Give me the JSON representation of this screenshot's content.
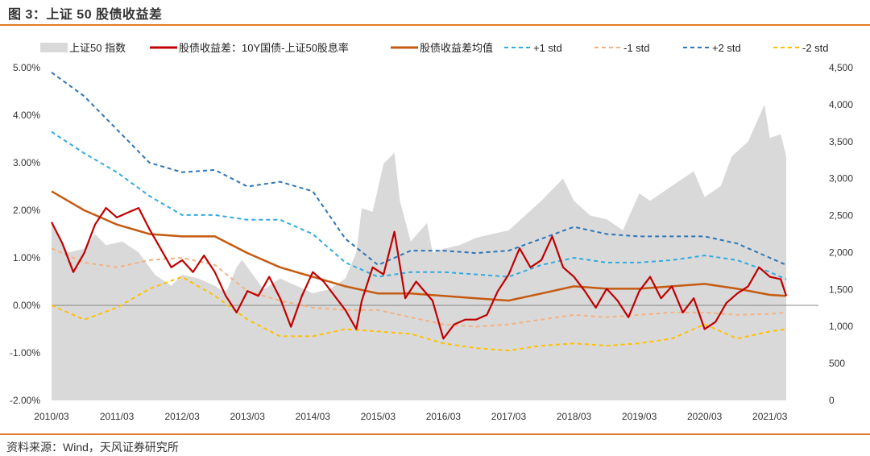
{
  "title": "图 3：上证 50 股债收益差",
  "source": "资料来源：Wind，天风证券研究所",
  "chart_data": {
    "type": "line",
    "title": "图 3：上证 50 股债收益差",
    "legend_position": "top",
    "grid": false,
    "x_axis": {
      "range": [
        "2010-03",
        "2021-06"
      ],
      "tick_labels": [
        "2010/03",
        "2011/03",
        "2012/03",
        "2013/03",
        "2014/03",
        "2015/03",
        "2016/03",
        "2017/03",
        "2018/03",
        "2019/03",
        "2020/03",
        "2021/03"
      ]
    },
    "y_left": {
      "range": [
        -2.0,
        5.0
      ],
      "unit": "%",
      "tick_labels": [
        "5.00%",
        "4.00%",
        "3.00%",
        "2.00%",
        "1.00%",
        "0.00%",
        "-1.00%",
        "-2.00%"
      ],
      "ticks": [
        5,
        4,
        3,
        2,
        1,
        0,
        -1,
        -2
      ]
    },
    "y_right": {
      "range": [
        0,
        4500
      ],
      "tick_labels": [
        "4,500",
        "4,000",
        "3,500",
        "3,000",
        "2,500",
        "2,000",
        "1,500",
        "1,000",
        "500",
        "0"
      ],
      "ticks": [
        4500,
        4000,
        3500,
        3000,
        2500,
        2000,
        1500,
        1000,
        500,
        0
      ]
    },
    "colors": {
      "index": "#d9d9d9",
      "spread": "#c00000",
      "mean": "#c55a11",
      "p1": "#33aadd",
      "m1": "#f4b183",
      "p2": "#2e75b6",
      "m2": "#ffc000",
      "axis": "#888888"
    },
    "series": [
      {
        "key": "index",
        "name": "上证50 指数",
        "axis": "right",
        "style": "area",
        "points": [
          [
            "2010-03",
            2400
          ],
          [
            "2010-06",
            2000
          ],
          [
            "2010-09",
            2050
          ],
          [
            "2010-11",
            2250
          ],
          [
            "2011-01",
            2100
          ],
          [
            "2011-04",
            2150
          ],
          [
            "2011-07",
            2000
          ],
          [
            "2011-10",
            1700
          ],
          [
            "2012-01",
            1550
          ],
          [
            "2012-03",
            1700
          ],
          [
            "2012-06",
            1650
          ],
          [
            "2012-09",
            1550
          ],
          [
            "2012-11",
            1450
          ],
          [
            "2013-01",
            1800
          ],
          [
            "2013-02",
            1900
          ],
          [
            "2013-06",
            1500
          ],
          [
            "2013-09",
            1650
          ],
          [
            "2013-12",
            1550
          ],
          [
            "2014-03",
            1450
          ],
          [
            "2014-06",
            1500
          ],
          [
            "2014-09",
            1650
          ],
          [
            "2014-11",
            2000
          ],
          [
            "2014-12",
            2600
          ],
          [
            "2015-02",
            2550
          ],
          [
            "2015-04",
            3200
          ],
          [
            "2015-06",
            3350
          ],
          [
            "2015-07",
            2700
          ],
          [
            "2015-09",
            2150
          ],
          [
            "2015-12",
            2400
          ],
          [
            "2016-01",
            2000
          ],
          [
            "2016-03",
            2050
          ],
          [
            "2016-06",
            2100
          ],
          [
            "2016-09",
            2200
          ],
          [
            "2016-12",
            2250
          ],
          [
            "2017-03",
            2300
          ],
          [
            "2017-06",
            2500
          ],
          [
            "2017-09",
            2700
          ],
          [
            "2018-01",
            3000
          ],
          [
            "2018-03",
            2700
          ],
          [
            "2018-06",
            2500
          ],
          [
            "2018-09",
            2450
          ],
          [
            "2018-12",
            2300
          ],
          [
            "2019-03",
            2800
          ],
          [
            "2019-05",
            2700
          ],
          [
            "2019-08",
            2850
          ],
          [
            "2019-12",
            3050
          ],
          [
            "2020-01",
            3100
          ],
          [
            "2020-03",
            2750
          ],
          [
            "2020-06",
            2900
          ],
          [
            "2020-08",
            3300
          ],
          [
            "2020-11",
            3500
          ],
          [
            "2021-02",
            4000
          ],
          [
            "2021-03",
            3550
          ],
          [
            "2021-05",
            3600
          ],
          [
            "2021-06",
            3300
          ]
        ]
      },
      {
        "key": "spread",
        "name": "股债收益差：10Y国债-上证50股息率",
        "axis": "left",
        "style": "line",
        "points": [
          [
            "2010-03",
            1.75
          ],
          [
            "2010-05",
            1.3
          ],
          [
            "2010-07",
            0.7
          ],
          [
            "2010-09",
            1.1
          ],
          [
            "2010-11",
            1.7
          ],
          [
            "2011-01",
            2.05
          ],
          [
            "2011-03",
            1.85
          ],
          [
            "2011-05",
            1.95
          ],
          [
            "2011-07",
            2.05
          ],
          [
            "2011-09",
            1.6
          ],
          [
            "2011-11",
            1.2
          ],
          [
            "2012-01",
            0.8
          ],
          [
            "2012-03",
            0.95
          ],
          [
            "2012-05",
            0.7
          ],
          [
            "2012-07",
            1.05
          ],
          [
            "2012-09",
            0.7
          ],
          [
            "2012-11",
            0.2
          ],
          [
            "2013-01",
            -0.15
          ],
          [
            "2013-03",
            0.3
          ],
          [
            "2013-05",
            0.2
          ],
          [
            "2013-07",
            0.6
          ],
          [
            "2013-09",
            0.15
          ],
          [
            "2013-11",
            -0.45
          ],
          [
            "2014-01",
            0.2
          ],
          [
            "2014-03",
            0.7
          ],
          [
            "2014-05",
            0.5
          ],
          [
            "2014-07",
            0.2
          ],
          [
            "2014-09",
            -0.1
          ],
          [
            "2014-11",
            -0.5
          ],
          [
            "2014-12",
            0.1
          ],
          [
            "2015-02",
            0.8
          ],
          [
            "2015-04",
            0.65
          ],
          [
            "2015-06",
            1.55
          ],
          [
            "2015-08",
            0.15
          ],
          [
            "2015-10",
            0.5
          ],
          [
            "2016-01",
            0.1
          ],
          [
            "2016-03",
            -0.7
          ],
          [
            "2016-05",
            -0.4
          ],
          [
            "2016-07",
            -0.3
          ],
          [
            "2016-09",
            -0.3
          ],
          [
            "2016-11",
            -0.2
          ],
          [
            "2017-01",
            0.3
          ],
          [
            "2017-03",
            0.65
          ],
          [
            "2017-05",
            1.2
          ],
          [
            "2017-07",
            0.8
          ],
          [
            "2017-09",
            0.95
          ],
          [
            "2017-11",
            1.45
          ],
          [
            "2018-01",
            0.8
          ],
          [
            "2018-03",
            0.6
          ],
          [
            "2018-05",
            0.3
          ],
          [
            "2018-07",
            -0.05
          ],
          [
            "2018-09",
            0.35
          ],
          [
            "2018-11",
            0.1
          ],
          [
            "2019-01",
            -0.25
          ],
          [
            "2019-03",
            0.3
          ],
          [
            "2019-05",
            0.6
          ],
          [
            "2019-07",
            0.15
          ],
          [
            "2019-09",
            0.4
          ],
          [
            "2019-11",
            -0.15
          ],
          [
            "2020-01",
            0.15
          ],
          [
            "2020-03",
            -0.5
          ],
          [
            "2020-05",
            -0.35
          ],
          [
            "2020-07",
            0.05
          ],
          [
            "2020-09",
            0.25
          ],
          [
            "2020-11",
            0.4
          ],
          [
            "2021-01",
            0.8
          ],
          [
            "2021-03",
            0.6
          ],
          [
            "2021-05",
            0.55
          ],
          [
            "2021-06",
            0.2
          ]
        ]
      },
      {
        "key": "mean",
        "name": "股债收益差均值",
        "axis": "left",
        "style": "line",
        "points": [
          [
            "2010-03",
            2.4
          ],
          [
            "2010-09",
            2.0
          ],
          [
            "2011-03",
            1.7
          ],
          [
            "2011-09",
            1.5
          ],
          [
            "2012-03",
            1.45
          ],
          [
            "2012-09",
            1.45
          ],
          [
            "2013-03",
            1.1
          ],
          [
            "2013-09",
            0.8
          ],
          [
            "2014-03",
            0.6
          ],
          [
            "2014-09",
            0.4
          ],
          [
            "2015-03",
            0.25
          ],
          [
            "2015-09",
            0.25
          ],
          [
            "2016-03",
            0.2
          ],
          [
            "2016-09",
            0.15
          ],
          [
            "2017-03",
            0.1
          ],
          [
            "2017-09",
            0.25
          ],
          [
            "2018-03",
            0.4
          ],
          [
            "2018-09",
            0.35
          ],
          [
            "2019-03",
            0.35
          ],
          [
            "2019-09",
            0.4
          ],
          [
            "2020-03",
            0.45
          ],
          [
            "2020-09",
            0.35
          ],
          [
            "2021-03",
            0.22
          ],
          [
            "2021-06",
            0.2
          ]
        ]
      },
      {
        "key": "p1",
        "name": "+1 std",
        "axis": "left",
        "style": "dash",
        "points": [
          [
            "2010-03",
            3.65
          ],
          [
            "2010-09",
            3.2
          ],
          [
            "2011-03",
            2.8
          ],
          [
            "2011-09",
            2.3
          ],
          [
            "2012-03",
            1.9
          ],
          [
            "2012-09",
            1.9
          ],
          [
            "2013-03",
            1.8
          ],
          [
            "2013-09",
            1.8
          ],
          [
            "2014-03",
            1.5
          ],
          [
            "2014-09",
            0.9
          ],
          [
            "2015-03",
            0.6
          ],
          [
            "2015-09",
            0.7
          ],
          [
            "2016-03",
            0.7
          ],
          [
            "2016-09",
            0.65
          ],
          [
            "2017-03",
            0.6
          ],
          [
            "2017-09",
            0.85
          ],
          [
            "2018-03",
            1.0
          ],
          [
            "2018-09",
            0.9
          ],
          [
            "2019-03",
            0.9
          ],
          [
            "2019-09",
            0.95
          ],
          [
            "2020-03",
            1.05
          ],
          [
            "2020-09",
            0.95
          ],
          [
            "2021-03",
            0.7
          ],
          [
            "2021-06",
            0.55
          ]
        ]
      },
      {
        "key": "m1",
        "name": "-1 std",
        "axis": "left",
        "style": "dash",
        "points": [
          [
            "2010-03",
            1.2
          ],
          [
            "2010-09",
            0.9
          ],
          [
            "2011-03",
            0.8
          ],
          [
            "2011-09",
            0.95
          ],
          [
            "2012-03",
            1.0
          ],
          [
            "2012-09",
            0.85
          ],
          [
            "2013-03",
            0.3
          ],
          [
            "2013-09",
            0.1
          ],
          [
            "2014-03",
            -0.05
          ],
          [
            "2014-09",
            -0.1
          ],
          [
            "2015-03",
            -0.1
          ],
          [
            "2015-09",
            -0.25
          ],
          [
            "2016-03",
            -0.4
          ],
          [
            "2016-09",
            -0.45
          ],
          [
            "2017-03",
            -0.4
          ],
          [
            "2017-09",
            -0.3
          ],
          [
            "2018-03",
            -0.2
          ],
          [
            "2018-09",
            -0.25
          ],
          [
            "2019-03",
            -0.2
          ],
          [
            "2019-09",
            -0.15
          ],
          [
            "2020-03",
            -0.15
          ],
          [
            "2020-09",
            -0.2
          ],
          [
            "2021-03",
            -0.18
          ],
          [
            "2021-06",
            -0.15
          ]
        ]
      },
      {
        "key": "p2",
        "name": "+2 std",
        "axis": "left",
        "style": "dash",
        "points": [
          [
            "2010-03",
            4.9
          ],
          [
            "2010-09",
            4.4
          ],
          [
            "2011-03",
            3.7
          ],
          [
            "2011-09",
            3.0
          ],
          [
            "2012-03",
            2.8
          ],
          [
            "2012-09",
            2.85
          ],
          [
            "2013-03",
            2.5
          ],
          [
            "2013-09",
            2.6
          ],
          [
            "2014-03",
            2.4
          ],
          [
            "2014-09",
            1.4
          ],
          [
            "2015-03",
            0.85
          ],
          [
            "2015-09",
            1.15
          ],
          [
            "2016-03",
            1.15
          ],
          [
            "2016-09",
            1.1
          ],
          [
            "2017-03",
            1.15
          ],
          [
            "2017-09",
            1.4
          ],
          [
            "2018-03",
            1.65
          ],
          [
            "2018-09",
            1.5
          ],
          [
            "2019-03",
            1.45
          ],
          [
            "2019-09",
            1.45
          ],
          [
            "2020-03",
            1.45
          ],
          [
            "2020-09",
            1.3
          ],
          [
            "2021-03",
            1.0
          ],
          [
            "2021-06",
            0.85
          ]
        ]
      },
      {
        "key": "m2",
        "name": "-2 std",
        "axis": "left",
        "style": "dash",
        "points": [
          [
            "2010-03",
            0.0
          ],
          [
            "2010-09",
            -0.3
          ],
          [
            "2011-03",
            -0.05
          ],
          [
            "2011-09",
            0.35
          ],
          [
            "2012-03",
            0.6
          ],
          [
            "2012-09",
            0.2
          ],
          [
            "2013-03",
            -0.3
          ],
          [
            "2013-09",
            -0.65
          ],
          [
            "2014-03",
            -0.65
          ],
          [
            "2014-09",
            -0.5
          ],
          [
            "2015-03",
            -0.55
          ],
          [
            "2015-09",
            -0.6
          ],
          [
            "2016-03",
            -0.8
          ],
          [
            "2016-09",
            -0.9
          ],
          [
            "2017-03",
            -0.95
          ],
          [
            "2017-09",
            -0.85
          ],
          [
            "2018-03",
            -0.8
          ],
          [
            "2018-09",
            -0.85
          ],
          [
            "2019-03",
            -0.8
          ],
          [
            "2019-09",
            -0.7
          ],
          [
            "2020-03",
            -0.4
          ],
          [
            "2020-09",
            -0.7
          ],
          [
            "2021-03",
            -0.55
          ],
          [
            "2021-06",
            -0.5
          ]
        ]
      }
    ]
  }
}
